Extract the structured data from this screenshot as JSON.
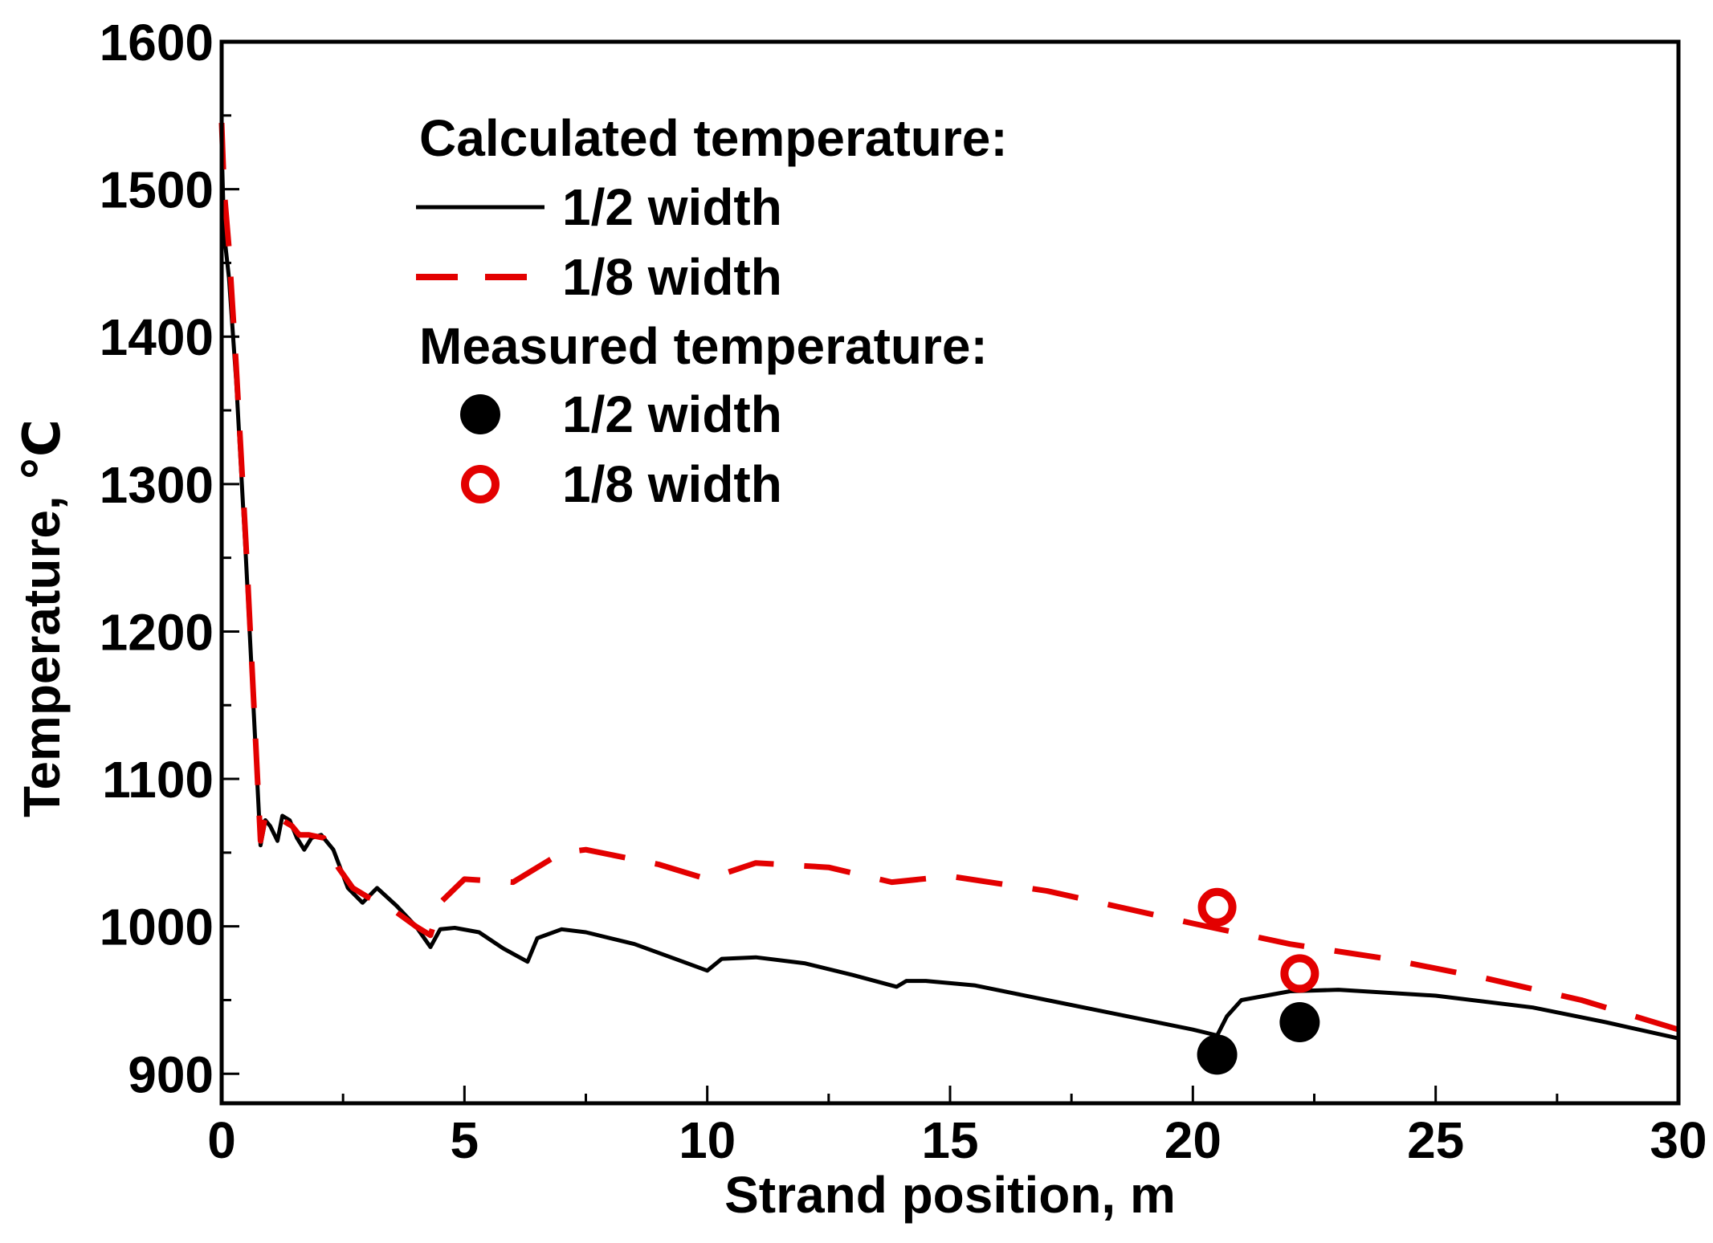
{
  "chart_data": {
    "type": "line",
    "title": "",
    "xlabel": "Strand position, m",
    "ylabel": "Temperature, ℃",
    "xlim": [
      0,
      30
    ],
    "ylim": [
      880,
      1600
    ],
    "x_ticks": [
      0,
      5,
      10,
      15,
      20,
      25,
      30
    ],
    "y_ticks": [
      900,
      1000,
      1100,
      1200,
      1300,
      1400,
      1500,
      1600
    ],
    "x_minor_step": 2.5,
    "y_minor_step": 50,
    "grid": false,
    "legend_placement": "upper-center",
    "legend": {
      "calculated_heading": "Calculated temperature:",
      "measured_heading": "Measured temperature:"
    },
    "series": [
      {
        "name": "1/2 width",
        "group": "Calculated temperature:",
        "style": "solid-line",
        "color": "#000000",
        "x": [
          0,
          0.05,
          0.15,
          0.3,
          0.5,
          0.8,
          0.9,
          1.0,
          1.15,
          1.25,
          1.4,
          1.55,
          1.7,
          1.85,
          2.05,
          2.3,
          2.6,
          2.9,
          3.2,
          3.6,
          4.0,
          4.3,
          4.5,
          4.8,
          5.3,
          5.8,
          6.3,
          6.5,
          7.0,
          7.5,
          8.5,
          9.5,
          10.0,
          10.3,
          11.0,
          12.0,
          13.0,
          13.9,
          14.1,
          14.5,
          15.5,
          17.0,
          18.5,
          20.0,
          20.5,
          20.7,
          21.0,
          22.0,
          23.0,
          25.0,
          27.0,
          28.5,
          30.0
        ],
        "y": [
          1530,
          1470,
          1440,
          1370,
          1250,
          1055,
          1072,
          1068,
          1058,
          1075,
          1072,
          1060,
          1052,
          1060,
          1062,
          1052,
          1026,
          1016,
          1026,
          1014,
          1000,
          986,
          998,
          999,
          996,
          985,
          976,
          992,
          998,
          996,
          988,
          976,
          970,
          978,
          979,
          975,
          967,
          959,
          963,
          963,
          960,
          950,
          940,
          930,
          926,
          939,
          950,
          956,
          957,
          953,
          945,
          935,
          924
        ]
      },
      {
        "name": "1/8 width",
        "group": "Calculated temperature:",
        "style": "dashed-line",
        "color": "#e30000",
        "x": [
          0,
          0.05,
          0.15,
          0.3,
          0.5,
          0.8,
          0.9,
          1.05,
          1.25,
          1.45,
          1.6,
          1.8,
          2.1,
          2.4,
          2.7,
          3.0,
          3.5,
          4.0,
          4.3,
          4.5,
          5.0,
          6.0,
          7.0,
          7.5,
          9.0,
          10.0,
          11.0,
          12.5,
          13.8,
          15.0,
          17.0,
          20.0,
          22.0,
          24.0,
          26.0,
          28.0,
          30.0
        ],
        "y": [
          1545,
          1500,
          1460,
          1380,
          1260,
          1058,
          1075,
          1068,
          1072,
          1068,
          1062,
          1062,
          1060,
          1040,
          1026,
          1020,
          1012,
          1000,
          994,
          1016,
          1032,
          1030,
          1050,
          1052,
          1042,
          1032,
          1043,
          1040,
          1030,
          1034,
          1024,
          1002,
          988,
          978,
          965,
          950,
          930
        ]
      },
      {
        "name": "1/2 width",
        "group": "Measured temperature:",
        "style": "filled-circle",
        "color": "#000000",
        "x": [
          20.5,
          22.2
        ],
        "y": [
          913,
          935
        ]
      },
      {
        "name": "1/8 width",
        "group": "Measured temperature:",
        "style": "open-circle",
        "color": "#e30000",
        "x": [
          20.5,
          22.2
        ],
        "y": [
          1013,
          968
        ]
      }
    ]
  }
}
